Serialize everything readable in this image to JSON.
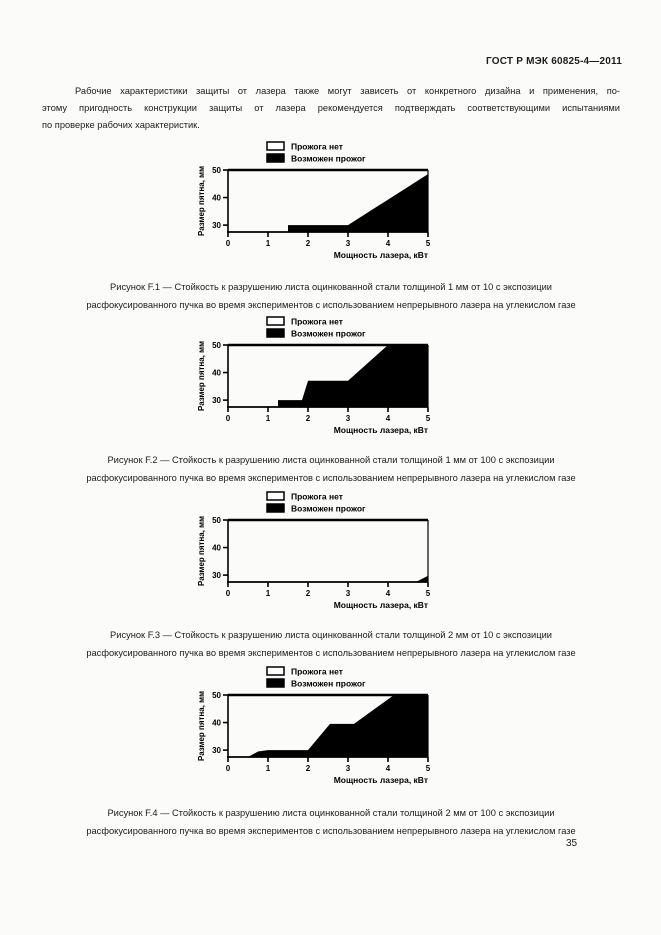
{
  "page": {
    "header": "ГОСТ Р МЭК 60825-4—2011",
    "page_number": "35"
  },
  "paragraph": {
    "lines": [
      "Рабочие характеристики защиты от лазера также могут зависеть от конкретного дизайна и применения, по-",
      "этому пригодность конструкции защиты от лазера рекомендуется подтверждать соответствующими испытаниями",
      "по проверке рабочих характеристик."
    ]
  },
  "legend": {
    "no_burn_label": "Прожога нет",
    "burn_possible_label": "Возможен прожог"
  },
  "chart_data": [
    {
      "type": "area",
      "xlabel": "Мощность лазера, кВт",
      "ylabel": "Размер пятна, мм",
      "xlim": [
        0,
        5
      ],
      "ylim": [
        27.5,
        50
      ],
      "xticks": [
        0,
        1,
        2,
        3,
        4,
        5
      ],
      "yticks": [
        30,
        40,
        50
      ],
      "grid": false,
      "legend_position": "top",
      "legend": [
        {
          "label": "Прожога нет",
          "color": "#ffffff"
        },
        {
          "label": "Возможен прожог",
          "color": "#000000"
        }
      ],
      "series": [
        {
          "name": "Возможен прожог",
          "points": [
            [
              1.5,
              27.5
            ],
            [
              1.5,
              30
            ],
            [
              3.0,
              30
            ],
            [
              5.0,
              48.5
            ],
            [
              5.0,
              27.5
            ]
          ]
        }
      ],
      "caption": {
        "line1": "Рисунок F.1 — Стойкость к разрушению листа оцинкованной стали толщиной 1 мм от 10 с экспозиции",
        "line2": "расфокусированного пучка во время экспериментов с использованием непрерывного лазера на углекислом газе"
      }
    },
    {
      "type": "area",
      "xlabel": "Мощность лазера, кВт",
      "ylabel": "Размер пятна, мм",
      "xlim": [
        0,
        5
      ],
      "ylim": [
        27.5,
        50
      ],
      "xticks": [
        0,
        1,
        2,
        3,
        4,
        5
      ],
      "yticks": [
        30,
        40,
        50
      ],
      "grid": false,
      "legend_position": "top",
      "legend": [
        {
          "label": "Прожога нет",
          "color": "#ffffff"
        },
        {
          "label": "Возможен прожог",
          "color": "#000000"
        }
      ],
      "series": [
        {
          "name": "Возможен прожог",
          "points": [
            [
              1.25,
              27.5
            ],
            [
              1.25,
              30
            ],
            [
              1.85,
              30
            ],
            [
              2.0,
              37
            ],
            [
              3.0,
              37
            ],
            [
              4.0,
              50
            ],
            [
              5.0,
              50
            ],
            [
              5.0,
              27.5
            ]
          ]
        }
      ],
      "caption": {
        "line1": "Рисунок F.2 — Стойкость к разрушению листа оцинкованной стали толщиной 1 мм от 100 с экспозиции",
        "line2": "расфокусированного пучка во время экспериментов с использованием непрерывного лазера на углекислом газе"
      }
    },
    {
      "type": "area",
      "xlabel": "Мощность лазера, кВт",
      "ylabel": "Размер пятна, мм",
      "xlim": [
        0,
        5
      ],
      "ylim": [
        27.5,
        50
      ],
      "xticks": [
        0,
        1,
        2,
        3,
        4,
        5
      ],
      "yticks": [
        30,
        40,
        50
      ],
      "grid": false,
      "legend_position": "top",
      "legend": [
        {
          "label": "Прожога нет",
          "color": "#ffffff"
        },
        {
          "label": "Возможен прожог",
          "color": "#000000"
        }
      ],
      "series": [
        {
          "name": "Возможен прожог",
          "points": [
            [
              4.7,
              27.5
            ],
            [
              5.0,
              29.8
            ],
            [
              5.0,
              27.5
            ]
          ]
        }
      ],
      "caption": {
        "line1": "Рисунок F.3 — Стойкость к разрушению листа оцинкованной стали толщиной 2 мм от 10 с экспозиции",
        "line2": "расфокусированного пучка во время экспериментов с использованием непрерывного лазера на углекислом газе"
      }
    },
    {
      "type": "area",
      "xlabel": "Мощность лазера, кВт",
      "ylabel": "Размер пятна, мм",
      "xlim": [
        0,
        5
      ],
      "ylim": [
        27.5,
        50
      ],
      "xticks": [
        0,
        1,
        2,
        3,
        4,
        5
      ],
      "yticks": [
        30,
        40,
        50
      ],
      "grid": false,
      "legend_position": "top",
      "legend": [
        {
          "label": "Прожога нет",
          "color": "#ffffff"
        },
        {
          "label": "Возможен прожог",
          "color": "#000000"
        }
      ],
      "series": [
        {
          "name": "Возможен прожог",
          "points": [
            [
              0.5,
              27.5
            ],
            [
              0.75,
              29.5
            ],
            [
              1.0,
              30
            ],
            [
              2.0,
              30
            ],
            [
              2.55,
              39.5
            ],
            [
              3.15,
              39.5
            ],
            [
              4.15,
              50
            ],
            [
              5.0,
              50
            ],
            [
              5.0,
              27.5
            ]
          ]
        }
      ],
      "caption": {
        "line1": "Рисунок F.4 — Стойкость к разрушению листа оцинкованной стали толщиной 2 мм от 100 с экспозиции",
        "line2": "расфокусированного пучка во время экспериментов с использованием непрерывного лазера на углекислом газе"
      }
    }
  ]
}
